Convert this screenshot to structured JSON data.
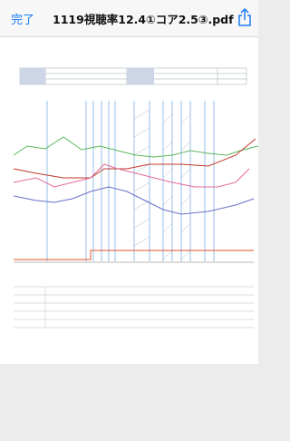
{
  "nav": {
    "done": "完了",
    "title": "1119視聴率12.4①コア2.5③.pdf"
  }
}
